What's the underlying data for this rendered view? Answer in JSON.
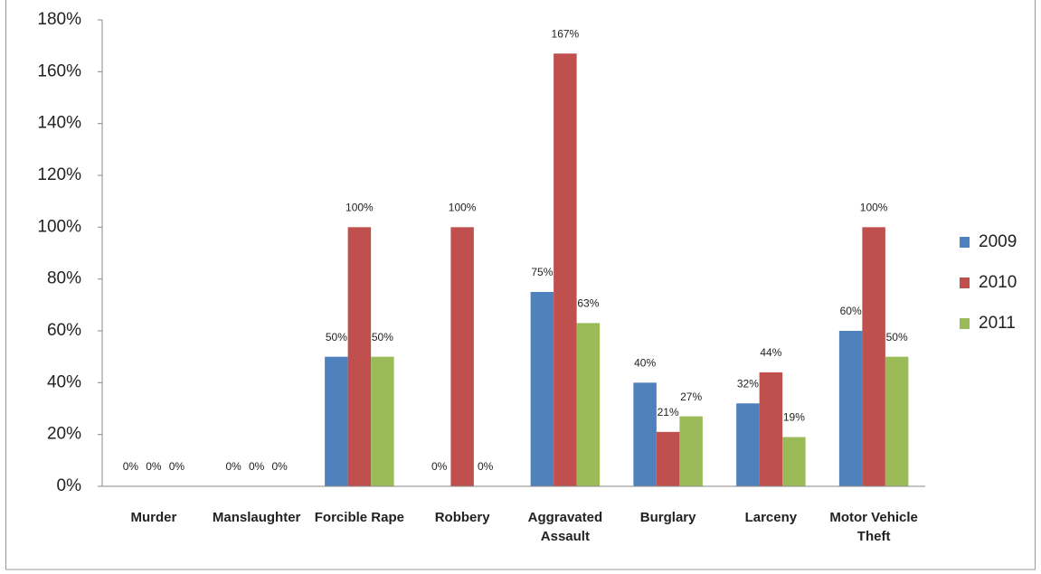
{
  "chart_data": {
    "type": "bar",
    "categories": [
      "Murder",
      "Manslaughter",
      "Forcible Rape",
      "Robbery",
      "Aggravated Assault",
      "Burglary",
      "Larceny",
      "Motor Vehicle Theft"
    ],
    "series": [
      {
        "name": "2009",
        "color": "#4f81bd",
        "values": [
          0,
          0,
          50,
          0,
          75,
          40,
          32,
          60
        ],
        "value_labels": [
          "0%",
          "0%",
          "50%",
          "0%",
          "75%",
          "40%",
          "32%",
          "60%"
        ]
      },
      {
        "name": "2010",
        "color": "#c0504d",
        "values": [
          0,
          0,
          100,
          100,
          167,
          21,
          44,
          100
        ],
        "value_labels": [
          "0%",
          "0%",
          "100%",
          "100%",
          "167%",
          "21%",
          "44%",
          "100%"
        ]
      },
      {
        "name": "2011",
        "color": "#9bbb59",
        "values": [
          0,
          0,
          50,
          0,
          63,
          27,
          19,
          50
        ],
        "value_labels": [
          "0%",
          "0%",
          "50%",
          "0%",
          "63%",
          "27%",
          "19%",
          "50%"
        ]
      }
    ],
    "ylim": [
      0,
      180
    ],
    "yticks": [
      {
        "value": 0,
        "label": "0%"
      },
      {
        "value": 20,
        "label": "20%"
      },
      {
        "value": 40,
        "label": "40%"
      },
      {
        "value": 60,
        "label": "60%"
      },
      {
        "value": 80,
        "label": "80%"
      },
      {
        "value": 100,
        "label": "100%"
      },
      {
        "value": 120,
        "label": "120%"
      },
      {
        "value": 140,
        "label": "140%"
      },
      {
        "value": 160,
        "label": "160%"
      },
      {
        "value": 180,
        "label": "180%"
      }
    ],
    "legend": "right"
  }
}
